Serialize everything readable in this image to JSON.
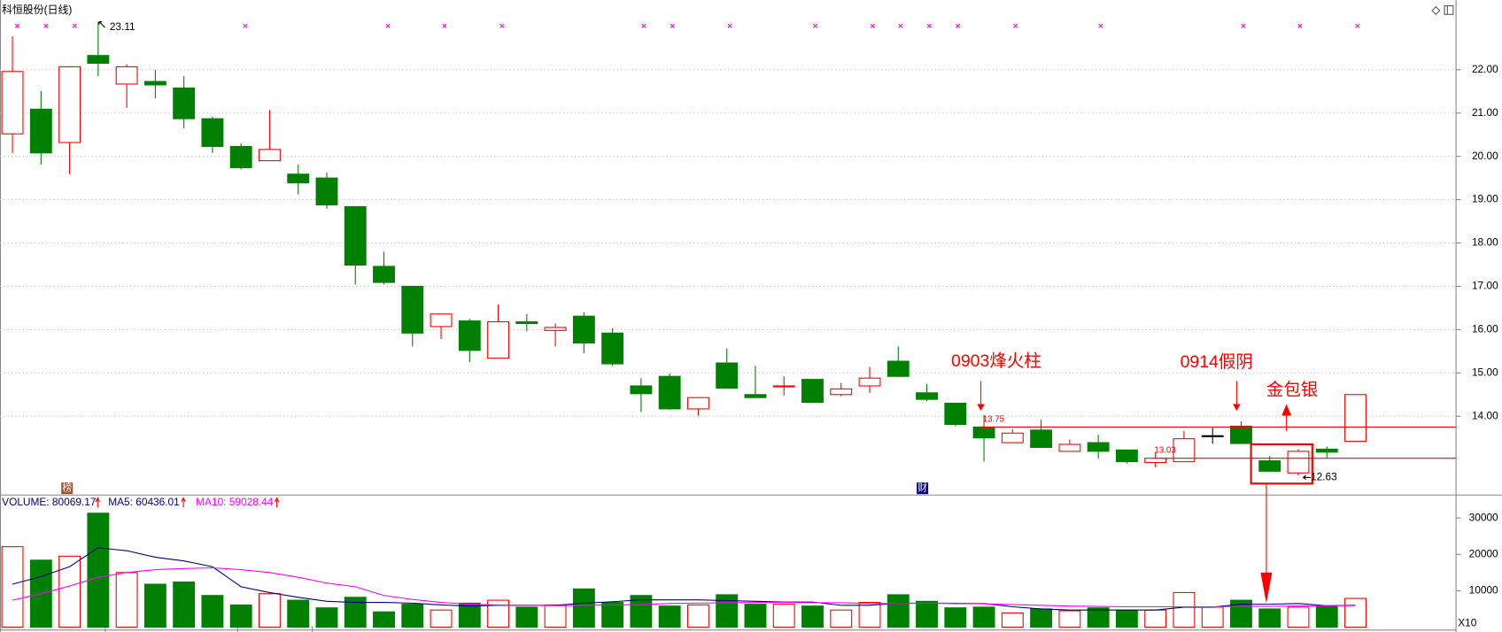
{
  "chart_data": [
    {
      "type": "candlestick",
      "title": "科恒股份(日线)",
      "open": [
        20.52,
        21.09,
        20.32,
        22.33,
        21.67,
        21.73,
        21.58,
        20.87,
        20.23,
        19.9,
        19.59,
        19.5,
        18.84,
        17.46,
        17.0,
        16.07,
        16.2,
        15.34,
        16.18,
        15.98,
        16.31,
        15.92,
        14.7,
        14.92,
        14.17,
        15.23,
        14.5,
        14.68,
        14.85,
        14.5,
        14.7,
        15.27,
        14.54,
        14.3,
        13.75,
        13.39,
        13.68,
        13.19,
        13.39,
        13.22,
        12.93,
        12.95,
        13.55,
        13.77,
        12.97,
        12.69,
        13.24,
        13.42
      ],
      "high": [
        22.77,
        21.51,
        22.07,
        23.11,
        22.13,
        22.0,
        21.85,
        20.92,
        20.3,
        21.07,
        19.81,
        19.63,
        18.84,
        17.8,
        17.0,
        16.36,
        16.25,
        16.58,
        16.36,
        16.14,
        16.4,
        16.03,
        14.88,
        14.99,
        14.43,
        15.56,
        15.16,
        14.92,
        14.85,
        14.77,
        15.14,
        15.61,
        14.74,
        14.3,
        14.03,
        13.7,
        13.92,
        13.46,
        13.57,
        13.22,
        13.17,
        13.66,
        13.73,
        13.88,
        13.08,
        13.24,
        13.3,
        14.5
      ],
      "low": [
        20.08,
        19.81,
        19.59,
        21.85,
        21.12,
        21.34,
        20.65,
        20.08,
        19.7,
        19.9,
        19.12,
        18.79,
        17.04,
        17.04,
        15.61,
        15.78,
        15.25,
        15.34,
        15.96,
        15.61,
        15.45,
        15.16,
        14.1,
        14.15,
        14.01,
        14.65,
        14.43,
        14.48,
        14.32,
        14.46,
        14.54,
        14.9,
        14.35,
        13.77,
        12.95,
        13.39,
        13.28,
        13.19,
        13.02,
        12.91,
        12.82,
        12.95,
        13.37,
        13.37,
        12.73,
        12.63,
        13.02,
        13.42
      ],
      "close": [
        21.96,
        20.08,
        22.07,
        22.15,
        22.07,
        21.65,
        20.87,
        20.23,
        19.74,
        20.16,
        19.39,
        18.88,
        17.49,
        17.09,
        15.92,
        16.36,
        15.52,
        16.18,
        16.14,
        16.05,
        15.69,
        15.21,
        14.52,
        14.17,
        14.43,
        14.65,
        14.43,
        14.7,
        14.32,
        14.63,
        14.88,
        14.92,
        14.39,
        13.81,
        13.5,
        13.61,
        13.28,
        13.35,
        13.19,
        12.95,
        13.03,
        13.48,
        13.55,
        13.37,
        12.73,
        13.19,
        13.17,
        14.5
      ],
      "ylim": [
        12.18,
        23.61
      ],
      "yticks": [
        {
          "value": 14,
          "label": "14.00"
        },
        {
          "value": 15,
          "label": "15.00"
        },
        {
          "value": 16,
          "label": "16.00"
        },
        {
          "value": 17,
          "label": "17.00"
        },
        {
          "value": 18,
          "label": "18.00"
        },
        {
          "value": 19,
          "label": "19.00"
        },
        {
          "value": 20,
          "label": "20.00"
        },
        {
          "value": 21,
          "label": "21.00"
        },
        {
          "value": 22,
          "label": "22.00"
        }
      ],
      "grid": true,
      "up_color": "#ff0000",
      "down_color": "#008000",
      "extremes": [
        {
          "value": 23.11,
          "label": "23.11"
        },
        {
          "value": 12.63,
          "label": "12.63"
        }
      ],
      "levels": [
        {
          "value": 13.75,
          "label": "13.75"
        },
        {
          "value": 13.03,
          "label": "13.03"
        }
      ],
      "annotations": [
        "0903烽火柱",
        "0914假阴",
        "金包银"
      ],
      "markers": [
        "榜",
        "财"
      ]
    },
    {
      "type": "bar",
      "title": "VOLUME: 80069.17",
      "values": [
        22100,
        18400,
        19500,
        31300,
        15000,
        11800,
        12400,
        8700,
        6100,
        9200,
        7400,
        5300,
        8200,
        4200,
        6300,
        4700,
        6600,
        7400,
        5500,
        6100,
        10500,
        6800,
        8700,
        5800,
        6100,
        8900,
        6300,
        6300,
        5800,
        4700,
        6800,
        8900,
        7100,
        5300,
        5500,
        3900,
        5000,
        4500,
        5300,
        4700,
        4700,
        9500,
        5500,
        7400,
        5000,
        5500,
        5800,
        7900
      ],
      "series": [
        {
          "name": "MA5: 60436.01",
          "color": "#000080",
          "values": [
            11800,
            13900,
            16600,
            21800,
            21000,
            19200,
            18200,
            16600,
            11100,
            9500,
            8200,
            7100,
            6800,
            6800,
            6600,
            6100,
            5800,
            6000,
            6000,
            6000,
            6600,
            7000,
            7500,
            7500,
            7500,
            7300,
            7100,
            6900,
            6900,
            6000,
            6000,
            6600,
            6600,
            6500,
            6500,
            5600,
            5000,
            4700,
            4700,
            4700,
            4700,
            5500,
            5500,
            6300,
            6300,
            6500,
            5900,
            6000
          ]
        },
        {
          "name": "MA10: 59028.44",
          "color": "#ff00ff",
          "values": [
            7400,
            9200,
            11300,
            13700,
            15000,
            15800,
            16100,
            16300,
            15800,
            15000,
            13700,
            12100,
            11100,
            8700,
            7600,
            6800,
            6300,
            6100,
            6000,
            5900,
            6000,
            6100,
            6200,
            6500,
            6600,
            6700,
            6800,
            6800,
            6700,
            6700,
            6500,
            6500,
            6600,
            6600,
            6400,
            6200,
            6000,
            5800,
            5700,
            5600,
            5600,
            5600,
            5600,
            5700,
            5700,
            5800,
            5900,
            5900
          ]
        }
      ],
      "ylim": [
        0,
        35500
      ],
      "yticks": [
        10000,
        20000,
        30000
      ],
      "scale_note": "X10"
    }
  ]
}
